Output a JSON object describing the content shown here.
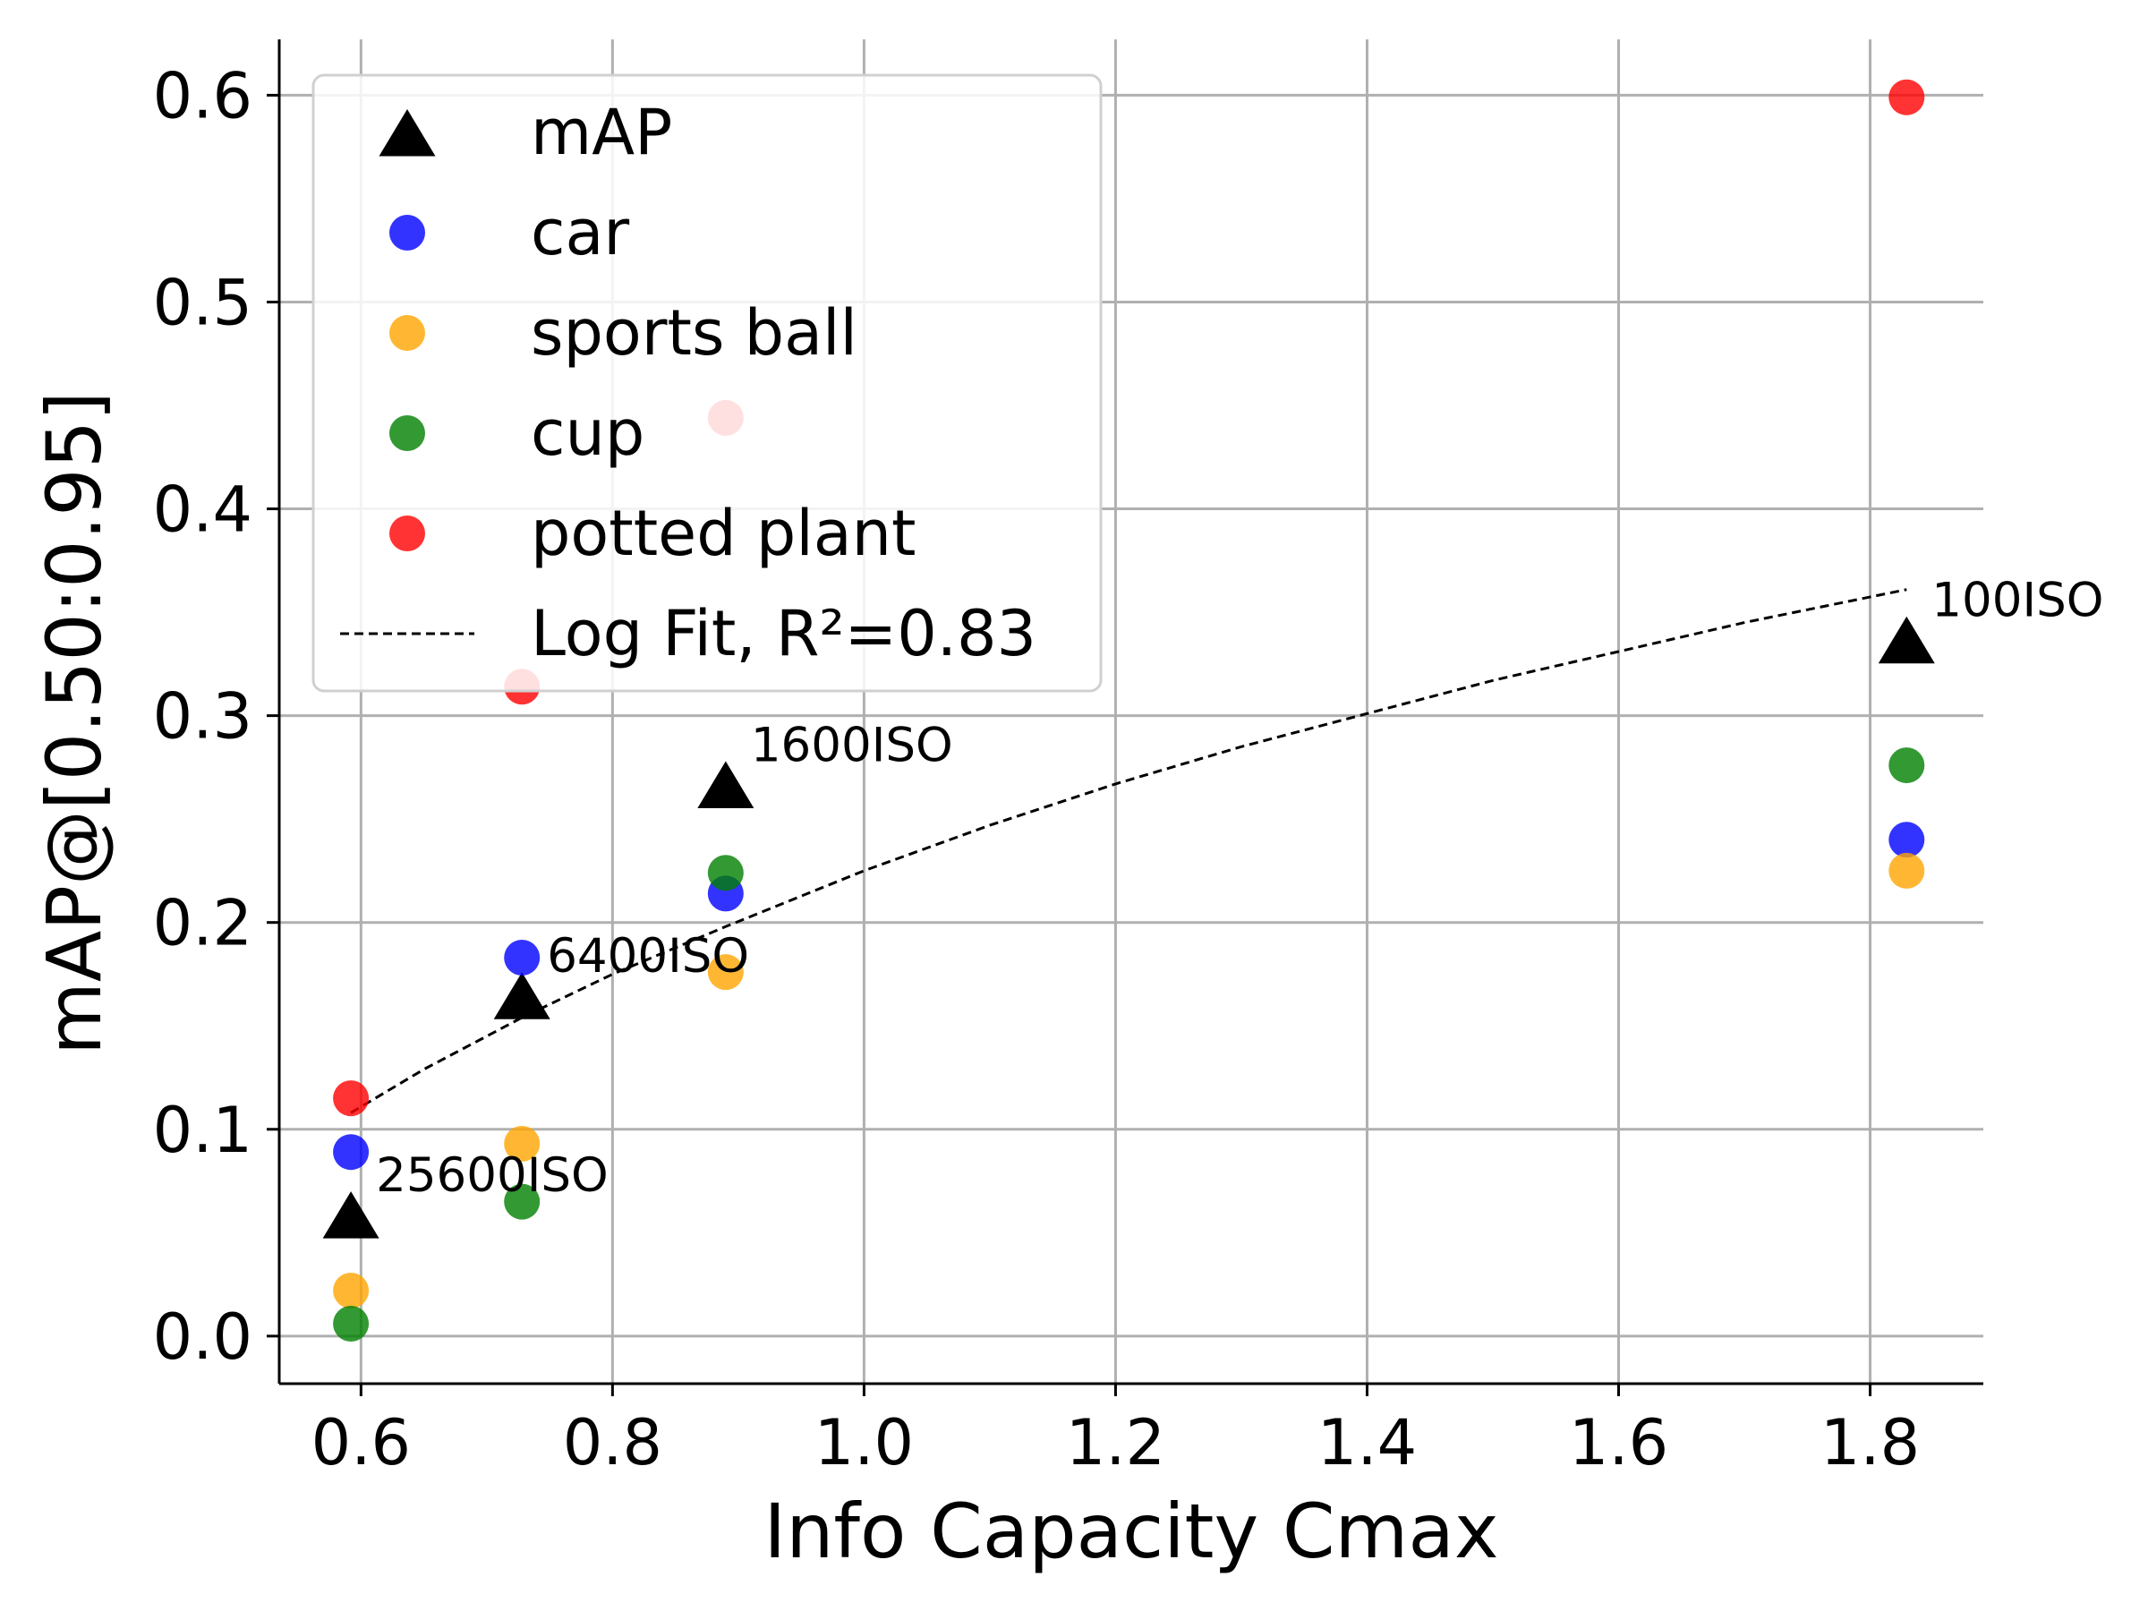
{
  "chart_data": {
    "type": "scatter",
    "xlabel": "Info Capacity Cmax",
    "ylabel": "mAP@[0.50:0.95]",
    "xlim": [
      0.535,
      1.89
    ],
    "ylim": [
      -0.023,
      0.627
    ],
    "x_ticks": [
      {
        "value": 0.6,
        "label": "0.6"
      },
      {
        "value": 0.8,
        "label": "0.8"
      },
      {
        "value": 1.0,
        "label": "1.0"
      },
      {
        "value": 1.2,
        "label": "1.2"
      },
      {
        "value": 1.4,
        "label": "1.4"
      },
      {
        "value": 1.6,
        "label": "1.6"
      },
      {
        "value": 1.8,
        "label": "1.8"
      }
    ],
    "y_ticks": [
      {
        "value": 0.0,
        "label": "0.0"
      },
      {
        "value": 0.1,
        "label": "0.1"
      },
      {
        "value": 0.2,
        "label": "0.2"
      },
      {
        "value": 0.3,
        "label": "0.3"
      },
      {
        "value": 0.4,
        "label": "0.4"
      },
      {
        "value": 0.5,
        "label": "0.5"
      },
      {
        "value": 0.6,
        "label": "0.6"
      }
    ],
    "grid": true,
    "legend_position": "top-left",
    "series": [
      {
        "name": "mAP",
        "marker": "triangle",
        "color": "#000000",
        "x": [
          0.592,
          0.728,
          0.89,
          1.829
        ],
        "y": [
          0.057,
          0.163,
          0.265,
          0.335
        ]
      },
      {
        "name": "car",
        "marker": "circle",
        "color": "#0000ff",
        "x": [
          0.592,
          0.728,
          0.89,
          1.829
        ],
        "y": [
          0.089,
          0.183,
          0.214,
          0.24
        ]
      },
      {
        "name": "sports ball",
        "marker": "circle",
        "color": "#ffa500",
        "x": [
          0.592,
          0.728,
          0.89,
          1.829
        ],
        "y": [
          0.022,
          0.093,
          0.176,
          0.225
        ]
      },
      {
        "name": "cup",
        "marker": "circle",
        "color": "#008000",
        "x": [
          0.592,
          0.728,
          0.89,
          1.829
        ],
        "y": [
          0.006,
          0.065,
          0.224,
          0.276
        ]
      },
      {
        "name": "potted plant",
        "marker": "circle",
        "color": "#ff0000",
        "x": [
          0.592,
          0.728,
          0.89,
          1.829
        ],
        "y": [
          0.115,
          0.314,
          0.444,
          0.599
        ]
      }
    ],
    "fit": {
      "name": "Log Fit, R²=0.83",
      "style": "dashed",
      "color": "#000000",
      "x": [
        0.592,
        0.65,
        0.728,
        0.8,
        0.89,
        1.0,
        1.1,
        1.2,
        1.3,
        1.4,
        1.5,
        1.6,
        1.7,
        1.829
      ],
      "y": [
        0.108,
        0.129,
        0.154,
        0.175,
        0.198,
        0.225,
        0.247,
        0.267,
        0.285,
        0.301,
        0.317,
        0.331,
        0.345,
        0.361
      ]
    },
    "annotations": [
      {
        "text": "25600ISO",
        "x": 0.592,
        "y": 0.057
      },
      {
        "text": "6400ISO",
        "x": 0.728,
        "y": 0.163
      },
      {
        "text": "1600ISO",
        "x": 0.89,
        "y": 0.265
      },
      {
        "text": "100ISO",
        "x": 1.829,
        "y": 0.335
      }
    ]
  }
}
